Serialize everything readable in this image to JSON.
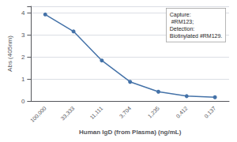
{
  "chart_data": {
    "type": "line",
    "categories": [
      "100,000",
      "33,333",
      "11,111",
      "3,704",
      "1,235",
      "0.412",
      "0.137"
    ],
    "values": [
      3.93,
      3.16,
      1.84,
      0.87,
      0.42,
      0.22,
      0.17
    ],
    "xlabel": "Human IgD (from Plasma) (ng/mL)",
    "ylabel": "Abs (405nm)",
    "ylim": [
      0,
      4.3
    ],
    "yticks": [
      0,
      1,
      2,
      3,
      4
    ],
    "grid": true,
    "color": "#4472a8",
    "marker": "circle",
    "annotation": "Capture:\n #RM123;\nDetection:\nBiotinylated #RM129."
  }
}
